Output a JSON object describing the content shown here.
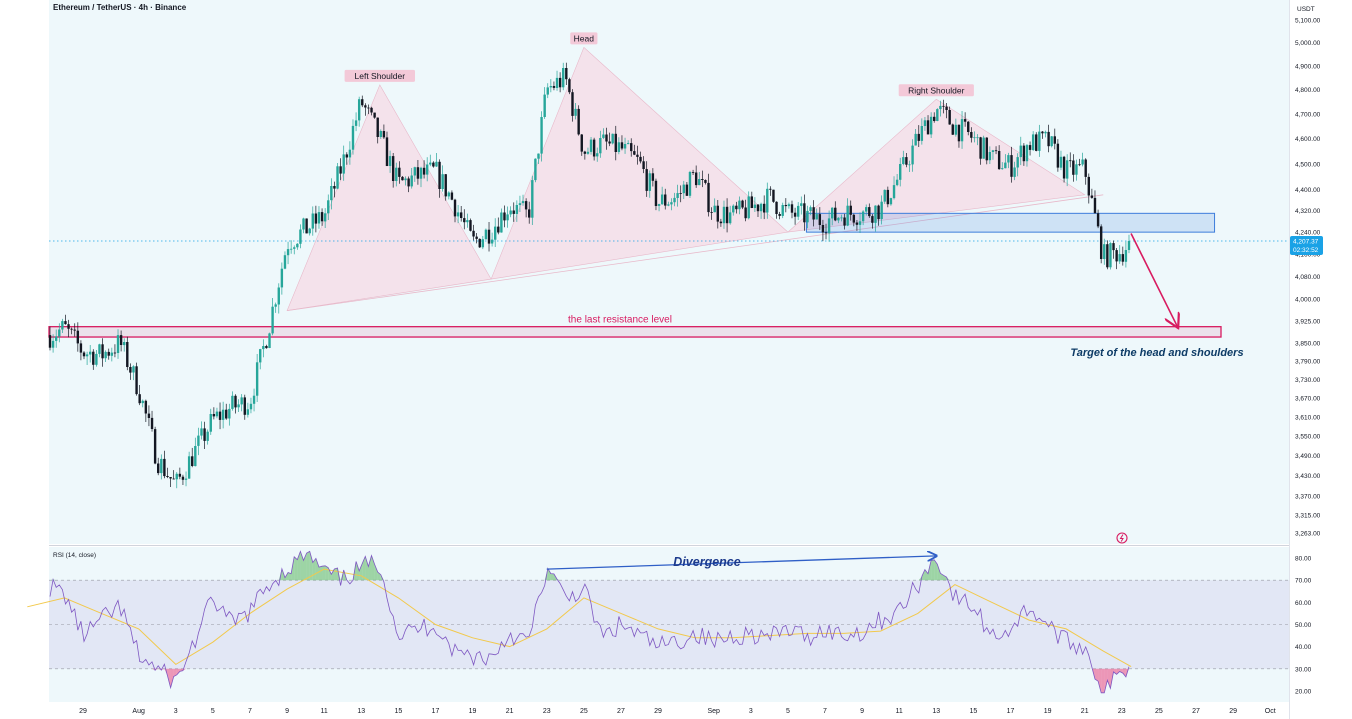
{
  "header": {
    "symbol": "Ethereum / TetherUS · 4h · Binance",
    "currency": "USDT"
  },
  "price_badge": {
    "price": "4,207.37",
    "countdown": "02:32:52"
  },
  "indicator": {
    "title": "RSI (14, close)"
  },
  "annotations": {
    "left_shoulder": "Left Shoulder",
    "head": "Head",
    "right_shoulder": "Right Shoulder",
    "resistance": "the last resistance level",
    "target": "Target of the head and shoulders",
    "divergence": "Divergence"
  },
  "colors": {
    "background": "#eef8fb",
    "candle_up": "#26a69a",
    "candle_down": "#131722",
    "pattern_fill": "#f6dbe5",
    "resistance": "#d81b60",
    "zone": "#3d7ddb",
    "rsi_line": "#7e57c2",
    "rsi_ma": "#f2c94c",
    "divergence": "#2f5fc7",
    "target_text": "#0d3b66"
  },
  "chart_data": [
    {
      "type": "candlestick",
      "title": "Ethereum / TetherUS · 4h · Binance",
      "y_unit": "USDT",
      "y_scale": "log",
      "y_ticks": [
        5100,
        5000,
        4900,
        4800,
        4700,
        4600,
        4500,
        4400,
        4320,
        4240,
        4160,
        4080,
        4000,
        3925,
        3850,
        3790,
        3730,
        3670,
        3610,
        3550,
        3490,
        3430,
        3370,
        3315,
        3263
      ],
      "y_tick_labels": [
        "5,100.00",
        "5,000.00",
        "4,900.00",
        "4,800.00",
        "4,700.00",
        "4,600.00",
        "4,500.00",
        "4,400.00",
        "4,320.00",
        "4,240.00",
        "4,160.00",
        "4,080.00",
        "4,000.00",
        "3,925.00",
        "3,850.00",
        "3,790.00",
        "3,730.00",
        "3,670.00",
        "3,610.00",
        "3,550.00",
        "3,490.00",
        "3,430.00",
        "3,370.00",
        "3,315.00",
        "3,263.00"
      ],
      "x_labels": [
        {
          "label": "29",
          "date": "2025-07-29"
        },
        {
          "label": "Aug",
          "date": "2025-08-01"
        },
        {
          "label": "3",
          "date": "2025-08-03"
        },
        {
          "label": "5",
          "date": "2025-08-05"
        },
        {
          "label": "7",
          "date": "2025-08-07"
        },
        {
          "label": "9",
          "date": "2025-08-09"
        },
        {
          "label": "11",
          "date": "2025-08-11"
        },
        {
          "label": "13",
          "date": "2025-08-13"
        },
        {
          "label": "15",
          "date": "2025-08-15"
        },
        {
          "label": "17",
          "date": "2025-08-17"
        },
        {
          "label": "19",
          "date": "2025-08-19"
        },
        {
          "label": "21",
          "date": "2025-08-21"
        },
        {
          "label": "23",
          "date": "2025-08-23"
        },
        {
          "label": "25",
          "date": "2025-08-25"
        },
        {
          "label": "27",
          "date": "2025-08-27"
        },
        {
          "label": "29",
          "date": "2025-08-29"
        },
        {
          "label": "Sep",
          "date": "2025-09-01"
        },
        {
          "label": "3",
          "date": "2025-09-03"
        },
        {
          "label": "5",
          "date": "2025-09-05"
        },
        {
          "label": "7",
          "date": "2025-09-07"
        },
        {
          "label": "9",
          "date": "2025-09-09"
        },
        {
          "label": "11",
          "date": "2025-09-11"
        },
        {
          "label": "13",
          "date": "2025-09-13"
        },
        {
          "label": "15",
          "date": "2025-09-15"
        },
        {
          "label": "17",
          "date": "2025-09-17"
        },
        {
          "label": "19",
          "date": "2025-09-19"
        },
        {
          "label": "21",
          "date": "2025-09-21"
        },
        {
          "label": "23",
          "date": "2025-09-23"
        },
        {
          "label": "25",
          "date": "2025-09-25"
        },
        {
          "label": "27",
          "date": "2025-09-27"
        },
        {
          "label": "29",
          "date": "2025-09-29"
        },
        {
          "label": "Oct",
          "date": "2025-10-01"
        }
      ],
      "close_path": [
        [
          "2025-07-26",
          3800
        ],
        [
          "2025-07-27",
          3870
        ],
        [
          "2025-07-28",
          3900
        ],
        [
          "2025-07-29",
          3820
        ],
        [
          "2025-07-30",
          3810
        ],
        [
          "2025-07-31",
          3850
        ],
        [
          "2025-08-01",
          3700
        ],
        [
          "2025-08-02",
          3480
        ],
        [
          "2025-08-03",
          3400
        ],
        [
          "2025-08-04",
          3500
        ],
        [
          "2025-08-05",
          3600
        ],
        [
          "2025-08-06",
          3640
        ],
        [
          "2025-08-07",
          3660
        ],
        [
          "2025-08-08",
          3900
        ],
        [
          "2025-08-09",
          4200
        ],
        [
          "2025-08-10",
          4250
        ],
        [
          "2025-08-11",
          4300
        ],
        [
          "2025-08-12",
          4500
        ],
        [
          "2025-08-13",
          4750
        ],
        [
          "2025-08-14",
          4600
        ],
        [
          "2025-08-15",
          4420
        ],
        [
          "2025-08-16",
          4450
        ],
        [
          "2025-08-17",
          4470
        ],
        [
          "2025-08-18",
          4350
        ],
        [
          "2025-08-19",
          4200
        ],
        [
          "2025-08-20",
          4250
        ],
        [
          "2025-08-21",
          4340
        ],
        [
          "2025-08-22",
          4300
        ],
        [
          "2025-08-23",
          4800
        ],
        [
          "2025-08-24",
          4850
        ],
        [
          "2025-08-25",
          4550
        ],
        [
          "2025-08-26",
          4580
        ],
        [
          "2025-08-27",
          4560
        ],
        [
          "2025-08-28",
          4500
        ],
        [
          "2025-08-29",
          4350
        ],
        [
          "2025-08-30",
          4370
        ],
        [
          "2025-08-31",
          4460
        ],
        [
          "2025-09-01",
          4320
        ],
        [
          "2025-09-02",
          4300
        ],
        [
          "2025-09-03",
          4330
        ],
        [
          "2025-09-04",
          4370
        ],
        [
          "2025-09-05",
          4310
        ],
        [
          "2025-09-06",
          4300
        ],
        [
          "2025-09-07",
          4280
        ],
        [
          "2025-09-08",
          4310
        ],
        [
          "2025-09-09",
          4310
        ],
        [
          "2025-09-10",
          4330
        ],
        [
          "2025-09-11",
          4450
        ],
        [
          "2025-09-12",
          4600
        ],
        [
          "2025-09-13",
          4720
        ],
        [
          "2025-09-14",
          4650
        ],
        [
          "2025-09-15",
          4600
        ],
        [
          "2025-09-16",
          4520
        ],
        [
          "2025-09-17",
          4490
        ],
        [
          "2025-09-18",
          4580
        ],
        [
          "2025-09-19",
          4590
        ],
        [
          "2025-09-20",
          4470
        ],
        [
          "2025-09-21",
          4480
        ],
        [
          "2025-09-22",
          4150
        ],
        [
          "2025-09-23",
          4170
        ],
        [
          "2025-09-23T12:00",
          4207.37
        ]
      ],
      "last_price": 4207.37,
      "annotations": [
        {
          "text": "Left Shoulder",
          "date": "2025-08-14",
          "price": 4820
        },
        {
          "text": "Head",
          "date": "2025-08-25",
          "price": 4980
        },
        {
          "text": "Right Shoulder",
          "date": "2025-09-13",
          "price": 4760
        },
        {
          "text": "the last resistance level",
          "price_low": 3870,
          "price_high": 3905
        },
        {
          "text": "Target of the head and shoulders",
          "target_price": 3905
        }
      ],
      "pattern_triangles": [
        [
          [
            "2025-08-09",
            3960
          ],
          [
            "2025-08-14",
            4820
          ],
          [
            "2025-08-20",
            4070
          ]
        ],
        [
          [
            "2025-08-20",
            4070
          ],
          [
            "2025-08-25",
            4980
          ],
          [
            "2025-09-05",
            4240
          ]
        ],
        [
          [
            "2025-09-05",
            4240
          ],
          [
            "2025-09-13",
            4760
          ],
          [
            "2025-09-21",
            4380
          ]
        ]
      ],
      "neckline": [
        [
          "2025-08-09",
          3960
        ],
        [
          "2025-09-22",
          4380
        ]
      ],
      "zone": {
        "date_start": "2025-09-06",
        "date_end": "2025-09-28",
        "price_low": 4240,
        "price_high": 4310
      },
      "target_arrow": [
        [
          "2025-09-23T12:00",
          4235
        ],
        [
          "2025-09-26",
          3905
        ]
      ]
    },
    {
      "type": "line",
      "title": "RSI (14, close)",
      "y_ticks": [
        80,
        70,
        60,
        50,
        40,
        30,
        20
      ],
      "y_tick_labels": [
        "80.00",
        "70.00",
        "60.00",
        "50.00",
        "40.00",
        "30.00",
        "20.00"
      ],
      "ylim": [
        15,
        85
      ],
      "band": [
        30,
        70
      ],
      "series": [
        {
          "key": "rsi",
          "values": [
            [
              "2025-07-26",
              55
            ],
            [
              "2025-07-27",
              68
            ],
            [
              "2025-07-28",
              64
            ],
            [
              "2025-07-29",
              45
            ],
            [
              "2025-07-30",
              52
            ],
            [
              "2025-07-31",
              58
            ],
            [
              "2025-08-01",
              36
            ],
            [
              "2025-08-02",
              30
            ],
            [
              "2025-08-03",
              24
            ],
            [
              "2025-08-04",
              42
            ],
            [
              "2025-08-05",
              62
            ],
            [
              "2025-08-06",
              50
            ],
            [
              "2025-08-07",
              56
            ],
            [
              "2025-08-08",
              68
            ],
            [
              "2025-08-09",
              75
            ],
            [
              "2025-08-10",
              82
            ],
            [
              "2025-08-11",
              74
            ],
            [
              "2025-08-12",
              70
            ],
            [
              "2025-08-13",
              76
            ],
            [
              "2025-08-14",
              78
            ],
            [
              "2025-08-15",
              45
            ],
            [
              "2025-08-16",
              48
            ],
            [
              "2025-08-17",
              50
            ],
            [
              "2025-08-18",
              38
            ],
            [
              "2025-08-19",
              36
            ],
            [
              "2025-08-20",
              35
            ],
            [
              "2025-08-21",
              46
            ],
            [
              "2025-08-22",
              42
            ],
            [
              "2025-08-23",
              75
            ],
            [
              "2025-08-24",
              62
            ],
            [
              "2025-08-25",
              66
            ],
            [
              "2025-08-26",
              44
            ],
            [
              "2025-08-27",
              50
            ],
            [
              "2025-08-28",
              45
            ],
            [
              "2025-08-29",
              40
            ],
            [
              "2025-08-30",
              42
            ],
            [
              "2025-08-31",
              46
            ],
            [
              "2025-09-01",
              42
            ],
            [
              "2025-09-02",
              45
            ],
            [
              "2025-09-03",
              46
            ],
            [
              "2025-09-04",
              44
            ],
            [
              "2025-09-05",
              48
            ],
            [
              "2025-09-06",
              44
            ],
            [
              "2025-09-07",
              48
            ],
            [
              "2025-09-08",
              45
            ],
            [
              "2025-09-09",
              47
            ],
            [
              "2025-09-10",
              52
            ],
            [
              "2025-09-11",
              56
            ],
            [
              "2025-09-12",
              68
            ],
            [
              "2025-09-13",
              81
            ],
            [
              "2025-09-14",
              62
            ],
            [
              "2025-09-15",
              58
            ],
            [
              "2025-09-16",
              45
            ],
            [
              "2025-09-17",
              48
            ],
            [
              "2025-09-18",
              58
            ],
            [
              "2025-09-19",
              50
            ],
            [
              "2025-09-20",
              42
            ],
            [
              "2025-09-21",
              40
            ],
            [
              "2025-09-22",
              20
            ],
            [
              "2025-09-23",
              28
            ],
            [
              "2025-09-23T12:00",
              31
            ]
          ]
        },
        {
          "key": "rsi_ma",
          "values": [
            [
              "2025-07-26",
              58
            ],
            [
              "2025-07-28",
              62
            ],
            [
              "2025-07-30",
              55
            ],
            [
              "2025-08-01",
              48
            ],
            [
              "2025-08-03",
              32
            ],
            [
              "2025-08-05",
              42
            ],
            [
              "2025-08-07",
              55
            ],
            [
              "2025-08-09",
              66
            ],
            [
              "2025-08-11",
              75
            ],
            [
              "2025-08-13",
              72
            ],
            [
              "2025-08-15",
              62
            ],
            [
              "2025-08-17",
              50
            ],
            [
              "2025-08-19",
              44
            ],
            [
              "2025-08-21",
              40
            ],
            [
              "2025-08-23",
              48
            ],
            [
              "2025-08-25",
              62
            ],
            [
              "2025-08-27",
              55
            ],
            [
              "2025-08-29",
              48
            ],
            [
              "2025-08-31",
              44
            ],
            [
              "2025-09-02",
              44
            ],
            [
              "2025-09-04",
              45
            ],
            [
              "2025-09-06",
              46
            ],
            [
              "2025-09-08",
              46
            ],
            [
              "2025-09-10",
              47
            ],
            [
              "2025-09-12",
              55
            ],
            [
              "2025-09-14",
              68
            ],
            [
              "2025-09-16",
              60
            ],
            [
              "2025-09-18",
              52
            ],
            [
              "2025-09-20",
              48
            ],
            [
              "2025-09-22",
              38
            ],
            [
              "2025-09-23T12:00",
              31
            ]
          ]
        }
      ],
      "annotations": [
        {
          "text": "Divergence",
          "from": [
            "2025-08-23",
            75
          ],
          "to": [
            "2025-09-13",
            81
          ]
        }
      ]
    }
  ]
}
